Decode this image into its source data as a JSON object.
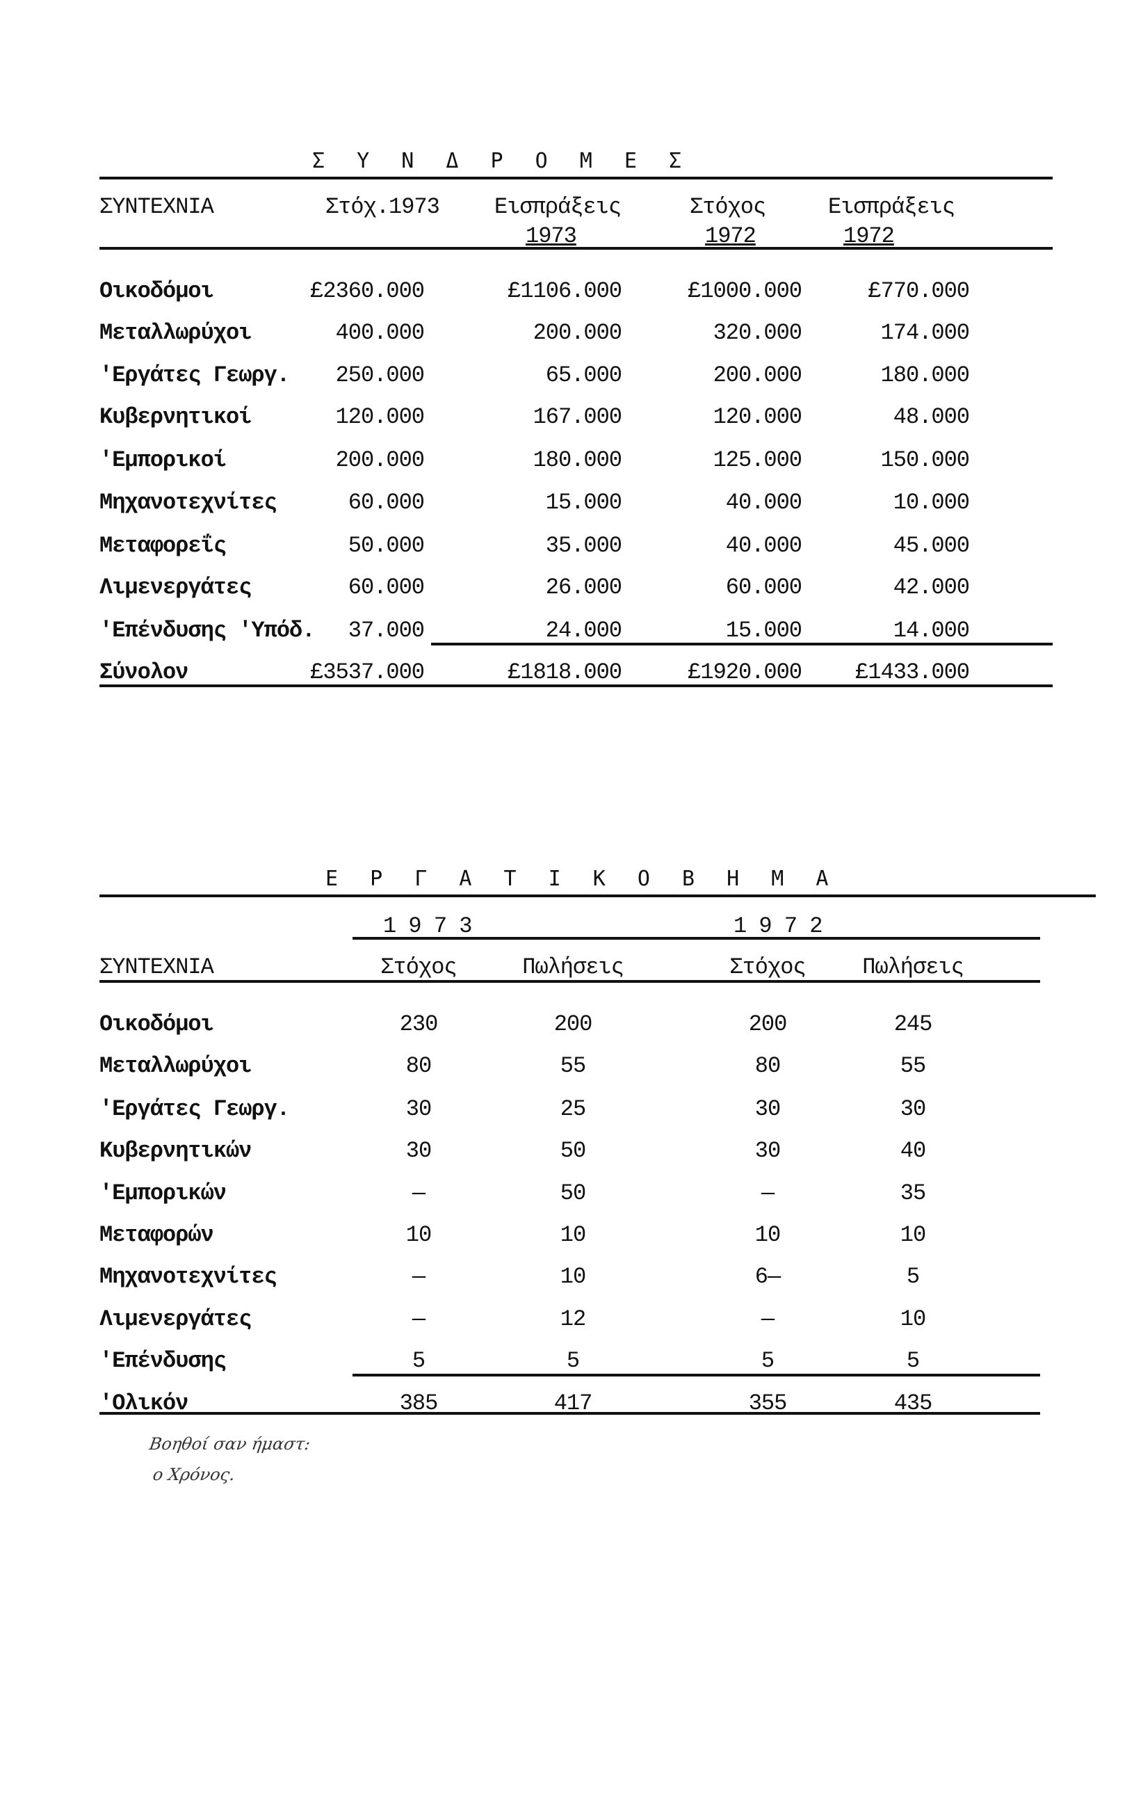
{
  "subscriptions": {
    "title": "Σ Υ Ν Δ Ρ Ο Μ Ε Σ",
    "headers": [
      "ΣΥΝΤΕΧΝΙΑ",
      "Στόχ.1973",
      "Εισπράξεις",
      "Στόχος",
      "Εισπράξεις"
    ],
    "headers_year": [
      "",
      "",
      "1973",
      "1972",
      "1972"
    ],
    "rows": [
      [
        "Οικοδόμοι",
        "£2360.000",
        "£1106.000",
        "£1000.000",
        "£770.000"
      ],
      [
        "Μεταλλωρύχοι",
        "400.000",
        "200.000",
        "320.000",
        "174.000"
      ],
      [
        "'Εργάτες Γεωργ.",
        "250.000",
        "65.000",
        "200.000",
        "180.000"
      ],
      [
        "Κυβερνητικοί",
        "120.000",
        "167.000",
        "120.000",
        "48.000"
      ],
      [
        "'Εμπορικοί",
        "200.000",
        "180.000",
        "125.000",
        "150.000"
      ],
      [
        "Μηχανοτεχνίτες",
        "60.000",
        "15.000",
        "40.000",
        "10.000"
      ],
      [
        "Μεταφορεΐς",
        "50.000",
        "35.000",
        "40.000",
        "45.000"
      ],
      [
        "Λιμενεργάτες",
        "60.000",
        "26.000",
        "60.000",
        "42.000"
      ],
      [
        "'Επένδυσης 'Υπόδ.",
        "37.000",
        "24.000",
        "15.000",
        "14.000"
      ],
      [
        "Σύνολον",
        "£3537.000",
        "£1818.000",
        "£1920.000",
        "£1433.000"
      ]
    ]
  },
  "ergatiko_vima": {
    "title": "Ε Ρ Γ Α Τ Ι Κ Ο   Β Η Μ Α",
    "years": [
      "1 9 7 3",
      "1 9 7 2"
    ],
    "headers": [
      "ΣΥΝΤΕΧΝΙΑ",
      "Στόχος",
      "Πωλήσεις",
      "Στόχος",
      "Πωλήσεις"
    ],
    "rows": [
      [
        "Οικοδόμοι",
        "230",
        "200",
        "200",
        "245"
      ],
      [
        "Μεταλλωρύχοι",
        "80",
        "55",
        "80",
        "55"
      ],
      [
        "'Εργάτες Γεωργ.",
        "30",
        "25",
        "30",
        "30"
      ],
      [
        "Κυβερνητικών",
        "30",
        "50",
        "30",
        "40"
      ],
      [
        "'Εμπορικών",
        "—",
        "50",
        "—",
        "35"
      ],
      [
        "Μεταφορών",
        "10",
        "10",
        "10",
        "10"
      ],
      [
        "Μηχανοτεχνίτες",
        "—",
        "10",
        "6—",
        "5"
      ],
      [
        "Λιμενεργάτες",
        "—",
        "12",
        "—",
        "10"
      ],
      [
        "'Επένδυσης",
        "5",
        "5",
        "5",
        "5"
      ],
      [
        "'Ολικόν",
        "385",
        "417",
        "355",
        "435"
      ]
    ]
  },
  "handwritten_note": [
    "Βοηθοί σαν ήμαστ:",
    "ο Χρόνος."
  ]
}
